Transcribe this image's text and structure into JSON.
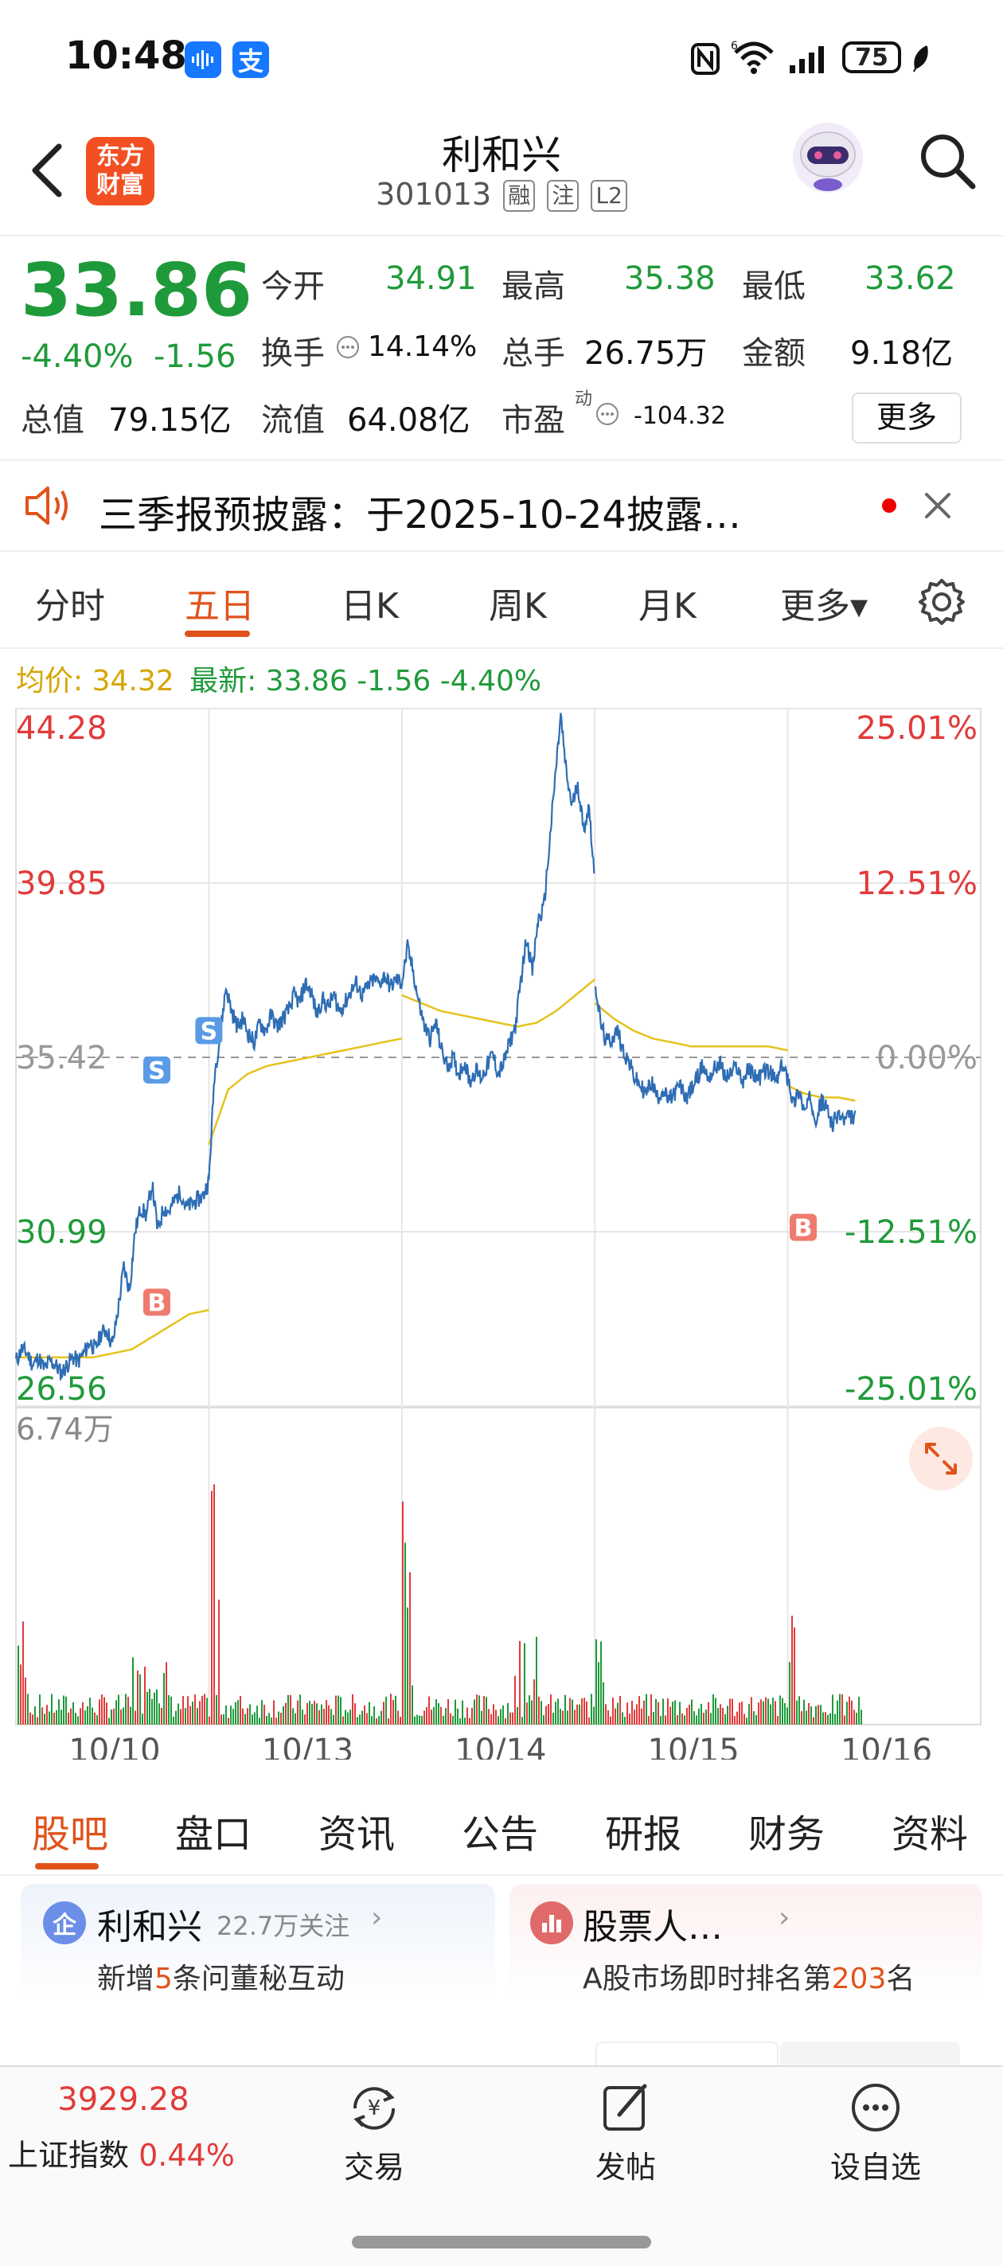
{
  "status_bar": {
    "time": "10:48",
    "app_badge_1_icon": "voice-icon",
    "app_badge_2": "支",
    "icons": [
      "nfc-icon",
      "wifi-6-icon",
      "signal-icon"
    ],
    "battery": "75"
  },
  "header": {
    "logo_line1": "东方",
    "logo_line2": "财富",
    "title": "利和兴",
    "code": "301013",
    "tags": [
      "融",
      "注",
      "L2"
    ]
  },
  "quote": {
    "price": "33.86",
    "change_pct": "-4.40%",
    "change": "-1.56",
    "open_label": "今开",
    "open": "34.91",
    "high_label": "最高",
    "high": "35.38",
    "low_label": "最低",
    "low": "33.62",
    "turnover_label": "换手",
    "turnover": "14.14%",
    "volume_label": "总手",
    "volume": "26.75万",
    "amount_label": "金额",
    "amount": "9.18亿",
    "mktcap_label": "总值",
    "mktcap": "79.15亿",
    "float_label": "流值",
    "float": "64.08亿",
    "pe_label": "市盈",
    "pe_sup": "动",
    "pe": "-104.32",
    "more": "更多"
  },
  "notice": {
    "text": "三季报预披露：于2025-10-24披露…"
  },
  "chart_tabs": {
    "items": [
      "分时",
      "五日",
      "日K",
      "周K",
      "月K",
      "更多▾"
    ],
    "active": 1
  },
  "legend": {
    "avg_label": "均价: 34.32",
    "latest_label": "最新: 33.86 -1.56 -4.40%"
  },
  "chart_data": {
    "type": "line",
    "title": "",
    "y_left_ticks": [
      "44.28",
      "39.85",
      "35.42",
      "30.99",
      "26.56"
    ],
    "y_right_ticks": [
      "25.01%",
      "12.51%",
      "0.00%",
      "-12.51%",
      "-25.01%"
    ],
    "ylim": [
      26.56,
      44.28
    ],
    "prev_close": 35.42,
    "volume_max_label": "6.74万",
    "x_labels": [
      "10/10",
      "10/13",
      "10/14",
      "10/15",
      "10/16"
    ],
    "series": [
      {
        "name": "最新",
        "days": [
          [
            27.7,
            28.0,
            27.9,
            27.6,
            27.8,
            27.5,
            27.7,
            27.6,
            27.4,
            27.6,
            27.8,
            27.7,
            27.9,
            28.2,
            28.0,
            28.4,
            28.5,
            28.1,
            29.0,
            30.1,
            29.5,
            31.0,
            31.6,
            31.4,
            32.2,
            31.0,
            31.6,
            31.5,
            31.8,
            32.0,
            31.6,
            31.7,
            31.8,
            31.9,
            32.3
          ],
          [
            32.3,
            35.0,
            36.0,
            37.2,
            36.6,
            36.2,
            36.4,
            36.0,
            35.8,
            36.3,
            36.1,
            36.5,
            36.2,
            36.4,
            36.6,
            37.0,
            36.8,
            37.3,
            37.1,
            36.5,
            36.9,
            36.7,
            37.0,
            36.6,
            36.8,
            37.1,
            37.3,
            37.0,
            37.2,
            37.4,
            37.3,
            37.5,
            37.2,
            37.4,
            37.3
          ],
          [
            37.3,
            38.2,
            37.6,
            36.8,
            36.2,
            35.9,
            36.3,
            35.6,
            35.2,
            35.4,
            35.0,
            35.3,
            34.8,
            35.1,
            34.9,
            35.2,
            35.5,
            35.0,
            35.3,
            35.8,
            36.2,
            37.4,
            38.5,
            37.6,
            38.9,
            39.2,
            40.8,
            42.5,
            44.1,
            42.6,
            41.8,
            42.4,
            41.2,
            41.8,
            39.9
          ],
          [
            37.4,
            36.3,
            35.8,
            35.9,
            36.1,
            35.6,
            35.3,
            34.9,
            34.7,
            34.5,
            34.8,
            34.4,
            34.6,
            34.3,
            34.5,
            34.7,
            34.4,
            34.6,
            34.9,
            35.2,
            34.9,
            35.1,
            35.3,
            34.9,
            35.0,
            35.2,
            34.8,
            35.1,
            35.0,
            34.9,
            35.1,
            35.0,
            34.8,
            35.2,
            34.9
          ],
          [
            35.0,
            34.2,
            34.6,
            34.0,
            34.4,
            33.9,
            34.3,
            34.1,
            33.7,
            34.0,
            33.8,
            33.9,
            33.86
          ]
        ]
      },
      {
        "name": "均价",
        "days": [
          [
            27.8,
            27.8,
            27.8,
            27.8,
            27.8,
            27.9,
            28.0,
            28.3,
            28.6,
            28.9,
            29.0
          ],
          [
            33.2,
            34.6,
            35.0,
            35.2,
            35.3,
            35.4,
            35.5,
            35.6,
            35.7,
            35.8,
            35.9
          ],
          [
            37.0,
            36.8,
            36.6,
            36.5,
            36.4,
            36.3,
            36.2,
            36.3,
            36.6,
            37.0,
            37.4
          ],
          [
            36.8,
            36.4,
            36.1,
            35.9,
            35.8,
            35.7,
            35.7,
            35.7,
            35.7,
            35.7,
            35.6
          ],
          [
            34.7,
            34.5,
            34.4,
            34.4,
            34.32
          ]
        ]
      }
    ],
    "markers": [
      {
        "label": "S",
        "day": 0,
        "pos": 0.73,
        "price": 35.1,
        "side": "sell"
      },
      {
        "label": "B",
        "day": 0,
        "pos": 0.73,
        "price": 29.2,
        "side": "buy"
      },
      {
        "label": "S",
        "day": 1,
        "pos": 0.0,
        "price": 36.1,
        "side": "sell"
      },
      {
        "label": "B",
        "day": 4,
        "pos": 0.08,
        "price": 31.1,
        "side": "buy"
      }
    ]
  },
  "sub_tabs": {
    "items": [
      "股吧",
      "盘口",
      "资讯",
      "公告",
      "研报",
      "财务",
      "资料"
    ],
    "active": 0
  },
  "cards": [
    {
      "icon": "企",
      "title": "利和兴",
      "meta": "22.7万关注",
      "sub_pre": "新增",
      "sub_num": "5",
      "sub_post": "条问董秘互动"
    },
    {
      "icon": "chart-icon",
      "title": "股票人…",
      "meta": "",
      "sub_pre": "A股市场即时排名第",
      "sub_num": "203",
      "sub_post": "名"
    }
  ],
  "bottom_bar": {
    "index_value": "3929.28",
    "index_name": "上证指数",
    "index_change": "0.44%",
    "trade": "交易",
    "post": "发帖",
    "watch": "设自选"
  },
  "colors": {
    "up": "#e23a3a",
    "down": "#1f9a3a",
    "accent": "#e0531b",
    "price_line": "#2e6db4",
    "avg_line": "#e6c21e"
  }
}
